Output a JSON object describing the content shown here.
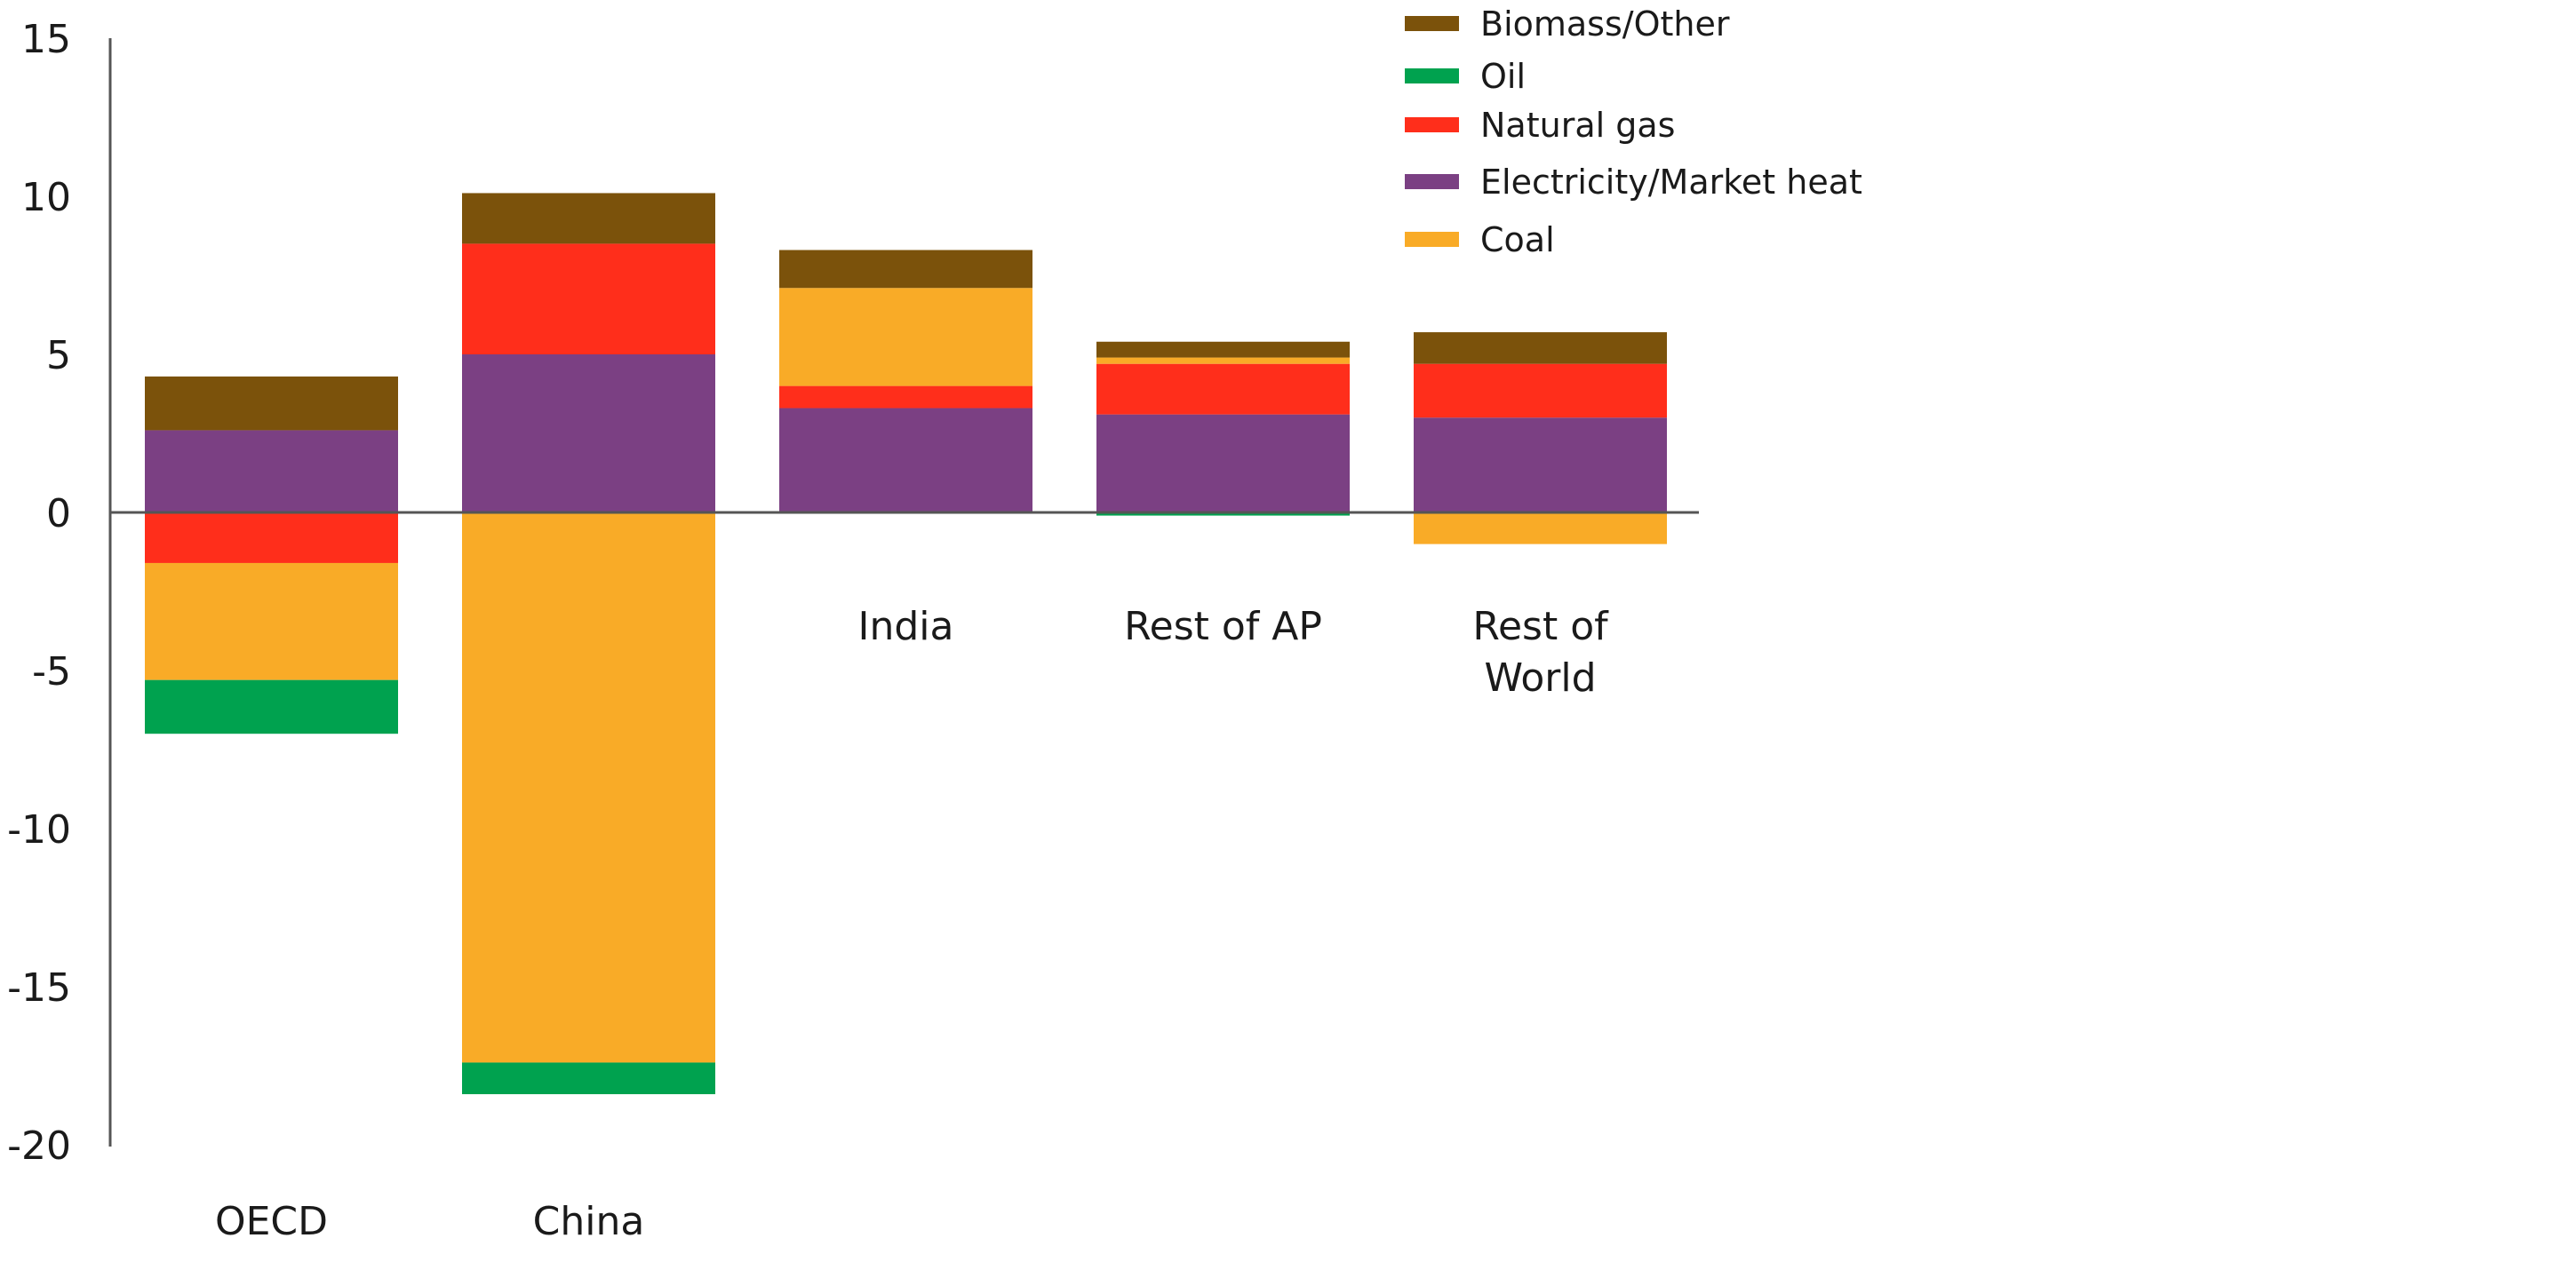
{
  "chart_data": {
    "type": "bar",
    "stacked": true,
    "title": "",
    "xlabel": "",
    "ylabel": "",
    "ylim": [
      -20,
      15
    ],
    "yticks": [
      "15",
      "10",
      "5",
      "0",
      "-5",
      "-10",
      "-15",
      "-20"
    ],
    "categories": [
      "OECD",
      "China",
      "India",
      "Rest of  AP",
      "Rest of\nWorld"
    ],
    "series": [
      {
        "name": "Electricity/Market heat",
        "color": "#7b4083",
        "values": [
          2.6,
          5.0,
          3.3,
          3.1,
          3.0
        ]
      },
      {
        "name": "Natural gas",
        "color": "#ff2e1b",
        "values": [
          -1.6,
          3.5,
          0.7,
          1.6,
          1.7
        ]
      },
      {
        "name": "Coal",
        "color": "#f9ab27",
        "values": [
          -3.7,
          -17.4,
          3.1,
          0.2,
          -1.0
        ]
      },
      {
        "name": "Oil",
        "color": "#00a24f",
        "values": [
          -1.7,
          -1.0,
          0.0,
          -0.1,
          0.0
        ]
      },
      {
        "name": "Biomass/Other",
        "color": "#7b520b",
        "values": [
          1.7,
          1.6,
          1.2,
          0.5,
          1.0
        ]
      }
    ],
    "legend": {
      "position": "top-right",
      "order": [
        "Biomass/Other",
        "Oil",
        "Natural gas",
        "Electricity/Market heat",
        "Coal"
      ]
    }
  }
}
